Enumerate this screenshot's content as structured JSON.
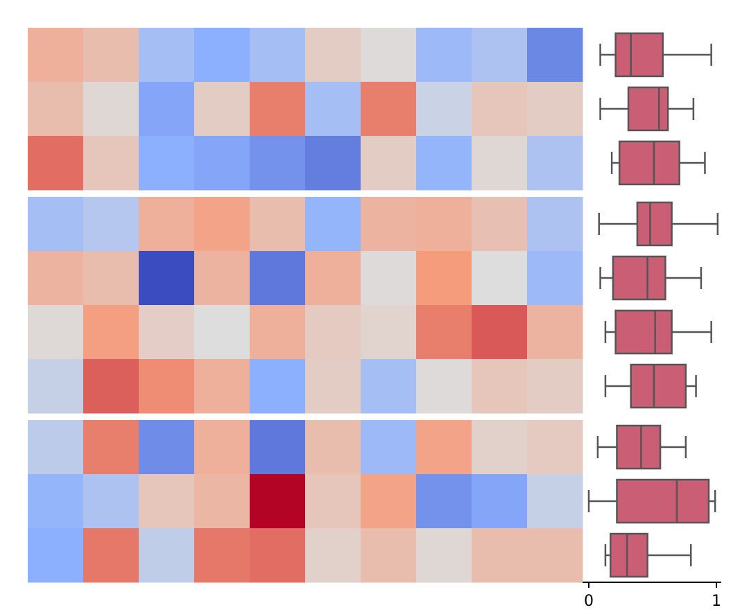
{
  "chart_data": [
    {
      "type": "heatmap",
      "title": "",
      "xlabel": "",
      "ylabel": "",
      "rows": 10,
      "columns": 10,
      "row_groups": [
        3,
        4,
        3
      ],
      "colormap": "coolwarm",
      "value_range": [
        -1,
        1
      ],
      "values": [
        [
          0.35,
          0.25,
          -0.35,
          -0.5,
          -0.35,
          0.13,
          0.02,
          -0.4,
          -0.3,
          -0.7
        ],
        [
          0.25,
          0.05,
          -0.55,
          0.13,
          0.6,
          -0.35,
          0.6,
          -0.12,
          0.18,
          0.13
        ],
        [
          0.65,
          0.18,
          -0.5,
          -0.55,
          -0.65,
          -0.75,
          0.13,
          -0.45,
          0.05,
          -0.3
        ],
        [
          -0.35,
          -0.25,
          0.35,
          0.45,
          0.25,
          -0.45,
          0.32,
          0.35,
          0.22,
          -0.3
        ],
        [
          0.32,
          0.25,
          -1.0,
          0.32,
          -0.78,
          0.35,
          0.02,
          0.5,
          0.0,
          -0.4
        ],
        [
          0.03,
          0.48,
          0.12,
          0.0,
          0.35,
          0.15,
          0.08,
          0.6,
          0.72,
          0.32
        ],
        [
          -0.15,
          0.7,
          0.55,
          0.35,
          -0.5,
          0.13,
          -0.35,
          0.02,
          0.18,
          0.13
        ],
        [
          -0.2,
          0.6,
          -0.68,
          0.35,
          -0.78,
          0.25,
          -0.4,
          0.45,
          0.1,
          0.15
        ],
        [
          -0.45,
          -0.3,
          0.18,
          0.3,
          1.0,
          0.18,
          0.45,
          -0.65,
          -0.55,
          -0.15
        ],
        [
          -0.5,
          0.62,
          -0.18,
          0.62,
          0.65,
          0.1,
          0.25,
          0.05,
          0.25,
          0.25
        ]
      ]
    },
    {
      "type": "box",
      "orientation": "horizontal",
      "title": "",
      "xlabel": "",
      "ylabel": "",
      "xlim": [
        0,
        1.05
      ],
      "xticks": [
        "0",
        "1"
      ],
      "color": "#c95e75",
      "edge_color": "#555555",
      "boxes": [
        {
          "min": 0.09,
          "q1": 0.21,
          "median": 0.33,
          "q3": 0.58,
          "max": 0.96
        },
        {
          "min": 0.09,
          "q1": 0.31,
          "median": 0.55,
          "q3": 0.62,
          "max": 0.82
        },
        {
          "min": 0.18,
          "q1": 0.24,
          "median": 0.51,
          "q3": 0.71,
          "max": 0.91
        },
        {
          "min": 0.08,
          "q1": 0.38,
          "median": 0.48,
          "q3": 0.65,
          "max": 1.01
        },
        {
          "min": 0.09,
          "q1": 0.19,
          "median": 0.46,
          "q3": 0.6,
          "max": 0.88
        },
        {
          "min": 0.13,
          "q1": 0.21,
          "median": 0.52,
          "q3": 0.65,
          "max": 0.96
        },
        {
          "min": 0.13,
          "q1": 0.33,
          "median": 0.51,
          "q3": 0.76,
          "max": 0.84
        },
        {
          "min": 0.07,
          "q1": 0.22,
          "median": 0.41,
          "q3": 0.56,
          "max": 0.76
        },
        {
          "min": 0.0,
          "q1": 0.22,
          "median": 0.69,
          "q3": 0.94,
          "max": 0.99
        },
        {
          "min": 0.13,
          "q1": 0.17,
          "median": 0.3,
          "q3": 0.46,
          "max": 0.8
        }
      ]
    }
  ]
}
